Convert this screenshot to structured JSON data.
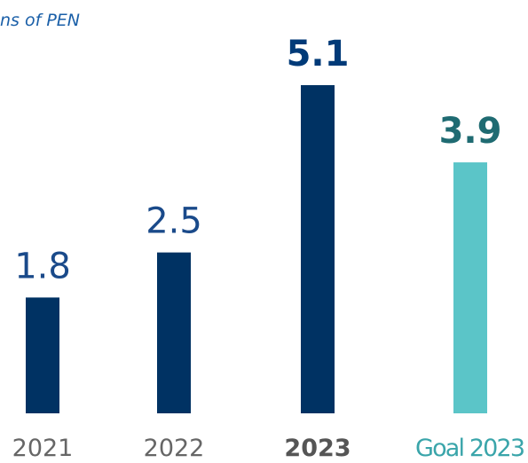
{
  "chart_data": {
    "type": "bar",
    "title": "ns of PEN",
    "categories": [
      "2021",
      "2022",
      "2023",
      "Goal 2023"
    ],
    "values": [
      1.8,
      2.5,
      5.1,
      3.9
    ],
    "colors": [
      "#003263",
      "#003263",
      "#003263",
      "#5bc5c8"
    ],
    "label_colors": [
      "#1a4a8a",
      "#1a4a8a",
      "#003a78",
      "#1f6b72"
    ],
    "category_colors": [
      "#666666",
      "#666666",
      "#555555",
      "#3aa5aa"
    ],
    "label_weights": [
      "normal",
      "normal",
      "bold",
      "bold"
    ]
  }
}
